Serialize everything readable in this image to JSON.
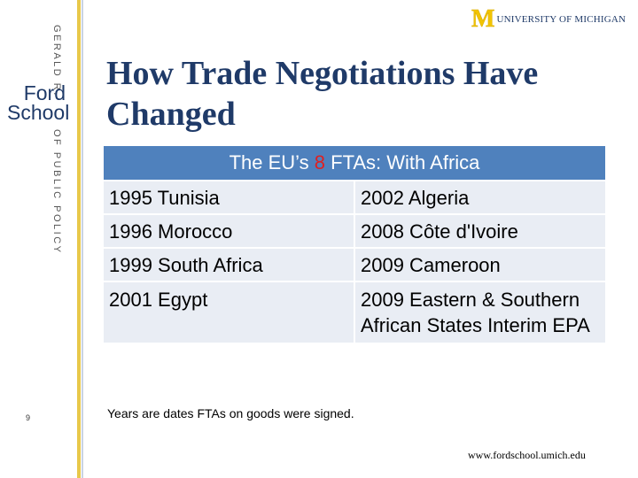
{
  "sidebar": {
    "top": "GERALD R.",
    "name": [
      "Ford",
      "School"
    ],
    "bottom": "OF PUBLIC POLICY"
  },
  "logo": {
    "mark": "M",
    "text": "UNIVERSITY OF MICHIGAN"
  },
  "title": "How Trade Negotiations Have Changed",
  "table": {
    "header": [
      "The EU’s ",
      "8",
      " FTAs:  With Africa"
    ],
    "rows": [
      [
        "1995 Tunisia",
        "2002 Algeria"
      ],
      [
        "1996 Morocco",
        "2008 Côte d'Ivoire"
      ],
      [
        "1999 South Africa",
        "2009 Cameroon"
      ],
      [
        "2001 Egypt",
        "2009 Eastern & Southern African States Interim EPA"
      ]
    ]
  },
  "note": "Years are dates FTAs on goods were signed.",
  "page_number": "9",
  "url": "www.fordschool.umich.edu"
}
